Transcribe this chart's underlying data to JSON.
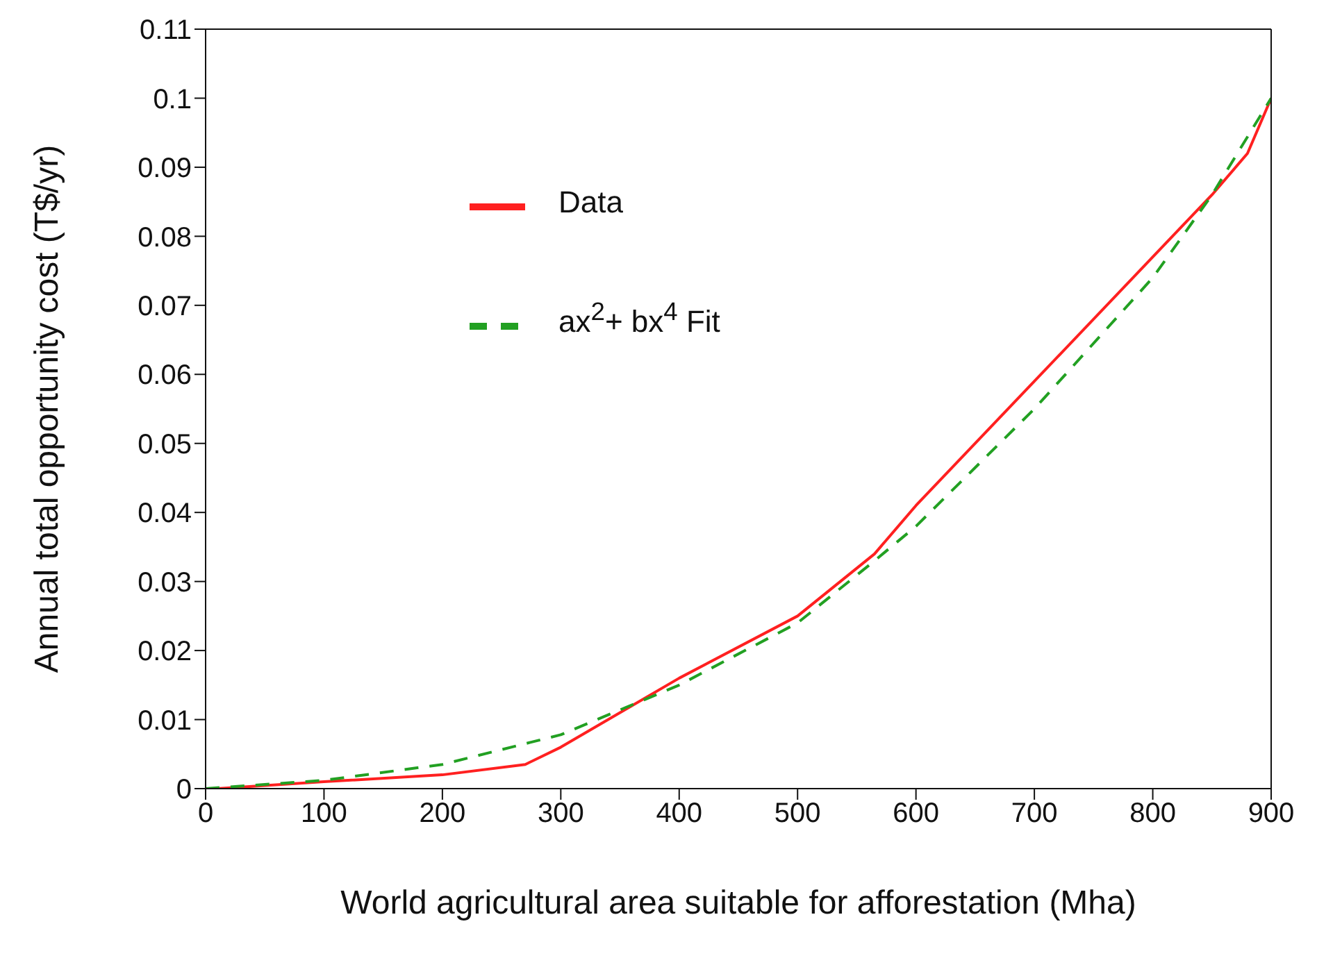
{
  "chart_data": {
    "type": "line",
    "xlabel": "World agricultural area suitable for afforestation (Mha)",
    "ylabel": "Annual total opportunity cost (T$/yr)",
    "xlim": [
      0,
      900
    ],
    "xticks": [
      0,
      100,
      200,
      300,
      400,
      500,
      600,
      700,
      800,
      900
    ],
    "ylim": [
      0,
      0.11
    ],
    "yticks": [
      0,
      0.01,
      0.02,
      0.03,
      0.04,
      0.05,
      0.06,
      0.07,
      0.08,
      0.09,
      0.1,
      0.11
    ],
    "grid": false,
    "legend": "top left",
    "marker": "none",
    "series": [
      {
        "name": "Data",
        "color": "#ff2020",
        "line_style": "solid",
        "x": [
          10,
          100,
          200,
          270,
          300,
          400,
          500,
          565,
          600,
          700,
          800,
          850,
          880,
          900
        ],
        "values": [
          0,
          0.001,
          0.002,
          0.0035,
          0.006,
          0.016,
          0.025,
          0.034,
          0.041,
          0.059,
          0.077,
          0.086,
          0.092,
          0.1
        ]
      },
      {
        "name": "ax$^{2}$+ bx$^{4}$ Fit",
        "color": "#22a022",
        "line_style": "dashed",
        "x": [
          0,
          100,
          200,
          300,
          400,
          500,
          565,
          600,
          700,
          800,
          850,
          900
        ],
        "values": [
          0,
          0.0012,
          0.0035,
          0.0078,
          0.015,
          0.024,
          0.033,
          0.038,
          0.055,
          0.074,
          0.086,
          0.1
        ]
      }
    ]
  }
}
